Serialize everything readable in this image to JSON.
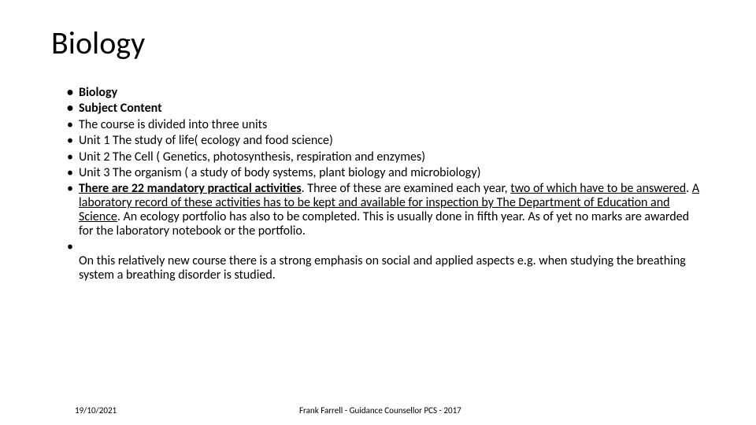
{
  "title": "Biology",
  "bullets": {
    "b1": "Biology",
    "b2": "Subject Content",
    "b3": "The course is divided into three units",
    "b4": "Unit 1  The study of life( ecology and food science)",
    "b5": "Unit 2  The Cell ( Genetics, photosynthesis, respiration and enzymes)",
    "b6": "Unit 3 The organism ( a study of body systems, plant biology and microbiology)",
    "b7_part1": "There are 22 mandatory practical activities",
    "b7_part2": ". Three of these are examined each year, ",
    "b7_part3": "two of which have to be answered",
    "b7_part4": ". ",
    "b7_part5": "A laboratory record of these activities has to be kept and available for inspection by The Department of Education and Science",
    "b7_part6": ". An ecology portfolio has also to be completed. This is usually done in fifth year. As of yet no marks are awarded for the laboratory notebook or the portfolio.",
    "b8": "On this relatively new course there is a strong emphasis on social and applied aspects e.g. when studying the breathing system a breathing disorder is studied."
  },
  "footer": {
    "date": "19/10/2021",
    "author": "Frank Farrell - Guidance Counsellor PCS - 2017"
  },
  "colors": {
    "background": "#ffffff",
    "text": "#000000"
  },
  "fonts": {
    "title_size": 40,
    "body_size": 16,
    "footer_size": 11
  }
}
